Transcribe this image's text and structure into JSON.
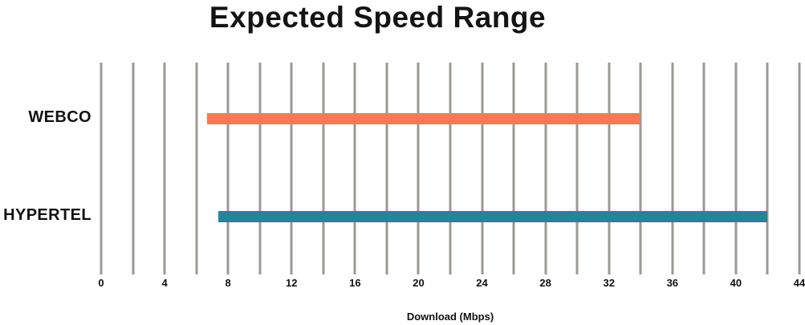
{
  "chart_data": {
    "type": "bar",
    "subtype": "horizontal-range",
    "title": "Expected Speed Range",
    "xlabel": "Download (Mbps)",
    "categories": [
      "WEBCO",
      "HYPERTEL"
    ],
    "ranges": [
      {
        "label": "WEBCO",
        "min": 6.7,
        "max": 34,
        "color": "#f07c55"
      },
      {
        "label": "HYPERTEL",
        "min": 7.4,
        "max": 42,
        "color": "#27829a"
      }
    ],
    "xlim": [
      0,
      44
    ],
    "x_major_ticks": [
      0,
      4,
      8,
      12,
      16,
      20,
      24,
      28,
      32,
      36,
      40,
      44
    ],
    "gridline_step": 2,
    "grid": true,
    "gridline_color": "#9c9995",
    "legend": "none",
    "background_color": "#ffffff",
    "text_color": "#111111"
  }
}
